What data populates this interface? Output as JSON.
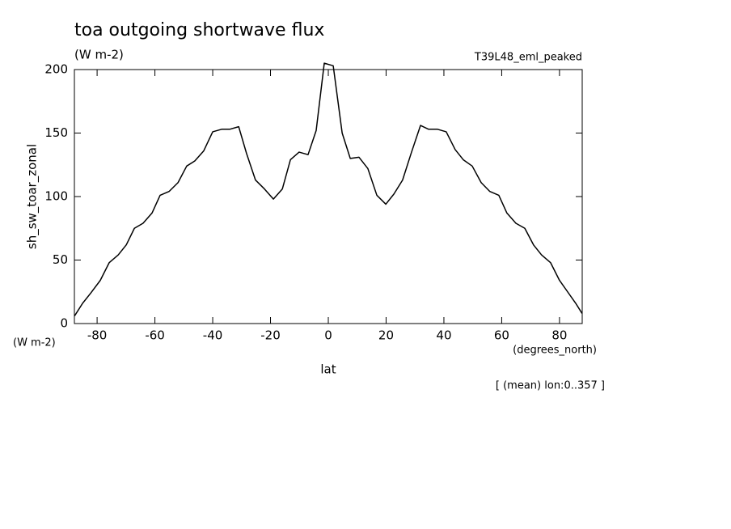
{
  "chart_data": {
    "type": "line",
    "title": "toa outgoing shortwave flux",
    "units": "(W m-2)",
    "dataset": "T39L48_eml_peaked",
    "y_label": "sh_sw_toar_zonal",
    "y_units": "(W m-2)",
    "x_label": "lat",
    "x_units": "(degrees_north)",
    "note": "[ (mean) lon:0..357 ]",
    "color": "#000000",
    "xlim": [
      -87.86,
      87.86
    ],
    "ylim": [
      0,
      200
    ],
    "xticks": [
      -80,
      -60,
      -40,
      -20,
      0,
      20,
      40,
      60,
      80
    ],
    "yticks": [
      0,
      50,
      100,
      150,
      200
    ],
    "x": [
      -87.8,
      -85.0,
      -82.2,
      -78.9,
      -75.8,
      -72.7,
      -69.9,
      -67.1,
      -64.1,
      -61.0,
      -58.2,
      -55.1,
      -52.0,
      -49.0,
      -46.2,
      -43.1,
      -40.0,
      -36.9,
      -34.1,
      -31.0,
      -28.3,
      -25.2,
      -22.1,
      -19.0,
      -15.9,
      -13.1,
      -10.1,
      -7.0,
      -4.2,
      -1.4,
      1.7,
      4.8,
      7.6,
      10.6,
      13.7,
      16.8,
      19.9,
      22.7,
      25.7,
      28.8,
      31.9,
      34.7,
      37.8,
      40.8,
      43.9,
      46.7,
      49.8,
      52.9,
      55.9,
      59.0,
      61.8,
      64.9,
      68.0,
      71.0,
      73.8,
      76.9,
      80.0,
      82.8,
      85.6,
      87.8
    ],
    "values": [
      6,
      16,
      24,
      34,
      48,
      54,
      62,
      75,
      79,
      87,
      101,
      104,
      111,
      124,
      128,
      136,
      151,
      153,
      153,
      155,
      134,
      113,
      106,
      98,
      106,
      129,
      135,
      133,
      152,
      205,
      203,
      150,
      130,
      131,
      122,
      101,
      94,
      102,
      113,
      135,
      156,
      153,
      153,
      151,
      137,
      129,
      124,
      111,
      104,
      101,
      87,
      79,
      75,
      62,
      54,
      48,
      34,
      25,
      16,
      8
    ]
  }
}
